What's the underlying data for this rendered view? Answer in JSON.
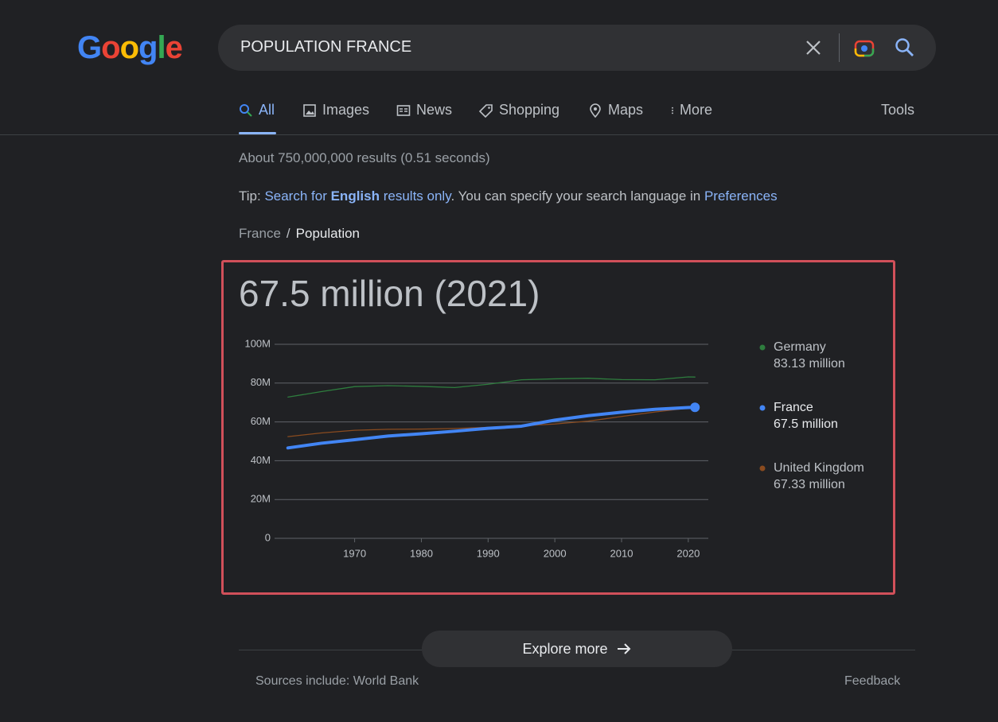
{
  "logo": [
    "G",
    "o",
    "o",
    "g",
    "l",
    "e"
  ],
  "search": {
    "query": "POPULATION FRANCE"
  },
  "tabs": [
    "All",
    "Images",
    "News",
    "Shopping",
    "Maps",
    "More"
  ],
  "tools": "Tools",
  "stats": "About 750,000,000 results (0.51 seconds)",
  "tip": {
    "prefix": "Tip: ",
    "link_start": "Search for ",
    "bold": "English",
    "link_end": " results only",
    "middle": ". You can specify your search language in ",
    "link_pref": "Preferences"
  },
  "breadcrumb": [
    "France",
    "Population"
  ],
  "chart_data": {
    "type": "line",
    "title": "67.5 million (2021)",
    "x": [
      1960,
      1965,
      1970,
      1975,
      1980,
      1985,
      1990,
      1995,
      2000,
      2005,
      2010,
      2015,
      2020,
      2021
    ],
    "xlim": [
      1958,
      2023
    ],
    "xticks": [
      1970,
      1980,
      1990,
      2000,
      2010,
      2020
    ],
    "ylim": [
      0,
      100
    ],
    "yticks": [
      0,
      {
        "value": 20,
        "label": "20M"
      },
      {
        "value": 40,
        "label": "40M"
      },
      {
        "value": 60,
        "label": "60M"
      },
      {
        "value": 80,
        "label": "80M"
      },
      {
        "value": 100,
        "label": "100M"
      }
    ],
    "grid": true,
    "series": [
      {
        "name": "Germany",
        "color": "#2e7d3e",
        "values": [
          72.8,
          75.6,
          78.2,
          78.7,
          78.3,
          77.7,
          79.4,
          81.7,
          82.2,
          82.5,
          81.8,
          81.7,
          83.2,
          83.13
        ],
        "value_labels": [
          null,
          null,
          null,
          null,
          null,
          null,
          null,
          null,
          null,
          null,
          null,
          null,
          null,
          "83.13 million"
        ]
      },
      {
        "name": "France",
        "color": "#4285f4",
        "values": [
          46.6,
          49.0,
          50.8,
          52.7,
          53.9,
          55.2,
          56.7,
          57.8,
          60.9,
          63.2,
          65.0,
          66.5,
          67.4,
          67.5
        ],
        "value_labels": [
          null,
          null,
          null,
          null,
          null,
          null,
          null,
          null,
          null,
          null,
          null,
          null,
          null,
          "67.5 million"
        ]
      },
      {
        "name": "United Kingdom",
        "color": "#8a4b1f",
        "values": [
          52.4,
          54.3,
          55.7,
          56.2,
          56.3,
          56.6,
          57.2,
          58.0,
          58.9,
          60.4,
          62.8,
          65.1,
          67.1,
          67.33
        ],
        "value_labels": [
          null,
          null,
          null,
          null,
          null,
          null,
          null,
          null,
          null,
          null,
          null,
          null,
          null,
          "67.33 million"
        ]
      }
    ]
  },
  "explore": "Explore more",
  "sources": "Sources include: World Bank",
  "feedback": "Feedback"
}
